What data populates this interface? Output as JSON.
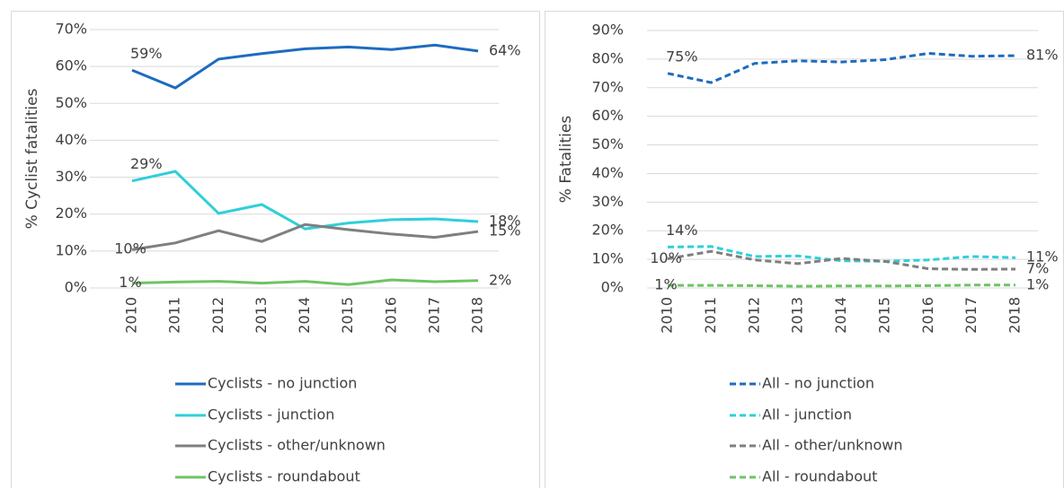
{
  "chart_data": [
    {
      "type": "line",
      "ylabel": "% Cyclist fatalities",
      "categories": [
        "2010",
        "2011",
        "2012",
        "2013",
        "2014",
        "2015",
        "2016",
        "2017",
        "2018"
      ],
      "ylim": [
        0,
        70
      ],
      "yticks": [
        {
          "value": 0,
          "label": "0%"
        },
        {
          "value": 10,
          "label": "10%"
        },
        {
          "value": 20,
          "label": "20%"
        },
        {
          "value": 30,
          "label": "30%"
        },
        {
          "value": 40,
          "label": "40%"
        },
        {
          "value": 50,
          "label": "50%"
        },
        {
          "value": 60,
          "label": "60%"
        },
        {
          "value": 70,
          "label": "70%"
        }
      ],
      "grid": true,
      "legend": "bottom",
      "line_style": "solid",
      "series": [
        {
          "name": "Cyclists - no junction",
          "color": "#1f6bbf",
          "values": [
            59,
            54.2,
            62,
            63.5,
            64.8,
            65.3,
            64.6,
            65.8,
            64.2
          ],
          "value_labels": [
            "59%",
            null,
            null,
            null,
            null,
            null,
            null,
            null,
            "64%"
          ]
        },
        {
          "name": "Cyclists - junction",
          "color": "#2fcfd9",
          "values": [
            29,
            31.6,
            20.2,
            22.6,
            16,
            17.6,
            18.5,
            18.7,
            18
          ],
          "value_labels": [
            "29%",
            null,
            null,
            null,
            null,
            null,
            null,
            null,
            "18%"
          ]
        },
        {
          "name": "Cyclists - other/unknown",
          "color": "#7f7f7f",
          "values": [
            10.4,
            12.2,
            15.5,
            12.6,
            17.2,
            15.8,
            14.6,
            13.7,
            15.3
          ],
          "value_labels": [
            "10%",
            null,
            null,
            null,
            null,
            null,
            null,
            null,
            "15%"
          ]
        },
        {
          "name": "Cyclists - roundabout",
          "color": "#6ec463",
          "values": [
            1.3,
            1.6,
            1.8,
            1.3,
            1.8,
            0.9,
            2.2,
            1.7,
            2.0
          ],
          "value_labels": [
            "1%",
            null,
            null,
            null,
            null,
            null,
            null,
            null,
            "2%"
          ]
        }
      ]
    },
    {
      "type": "line",
      "ylabel": "% Fatalities",
      "categories": [
        "2010",
        "2011",
        "2012",
        "2013",
        "2014",
        "2015",
        "2016",
        "2017",
        "2018"
      ],
      "ylim": [
        0,
        90
      ],
      "yticks": [
        {
          "value": 0,
          "label": "0%"
        },
        {
          "value": 10,
          "label": "10%"
        },
        {
          "value": 20,
          "label": "20%"
        },
        {
          "value": 30,
          "label": "30%"
        },
        {
          "value": 40,
          "label": "40%"
        },
        {
          "value": 50,
          "label": "50%"
        },
        {
          "value": 60,
          "label": "60%"
        },
        {
          "value": 70,
          "label": "70%"
        },
        {
          "value": 80,
          "label": "80%"
        },
        {
          "value": 90,
          "label": "90%"
        }
      ],
      "grid": true,
      "legend": "bottom",
      "line_style": "dashed",
      "series": [
        {
          "name": "All - no junction",
          "color": "#1f6bbf",
          "values": [
            75,
            71.8,
            78.5,
            79.4,
            79,
            79.8,
            82,
            81,
            81.2
          ],
          "value_labels": [
            "75%",
            null,
            null,
            null,
            null,
            null,
            null,
            null,
            "81%"
          ]
        },
        {
          "name": "All - junction",
          "color": "#2fcfd9",
          "values": [
            14.3,
            14.5,
            11,
            11.2,
            9.5,
            9.3,
            9.8,
            11,
            10.6
          ],
          "value_labels": [
            "14%",
            null,
            null,
            null,
            null,
            null,
            null,
            null,
            "11%"
          ]
        },
        {
          "name": "All - other/unknown",
          "color": "#7f7f7f",
          "values": [
            10.2,
            12.8,
            9.8,
            8.5,
            10.3,
            9.3,
            6.7,
            6.5,
            6.6
          ],
          "value_labels": [
            "10%",
            null,
            null,
            null,
            null,
            null,
            null,
            null,
            "7%"
          ]
        },
        {
          "name": "All - roundabout",
          "color": "#6ec463",
          "values": [
            0.9,
            0.9,
            0.8,
            0.6,
            0.7,
            0.7,
            0.8,
            1.0,
            1.0
          ],
          "value_labels": [
            "1%",
            null,
            null,
            null,
            null,
            null,
            null,
            null,
            "1%"
          ]
        }
      ]
    }
  ]
}
